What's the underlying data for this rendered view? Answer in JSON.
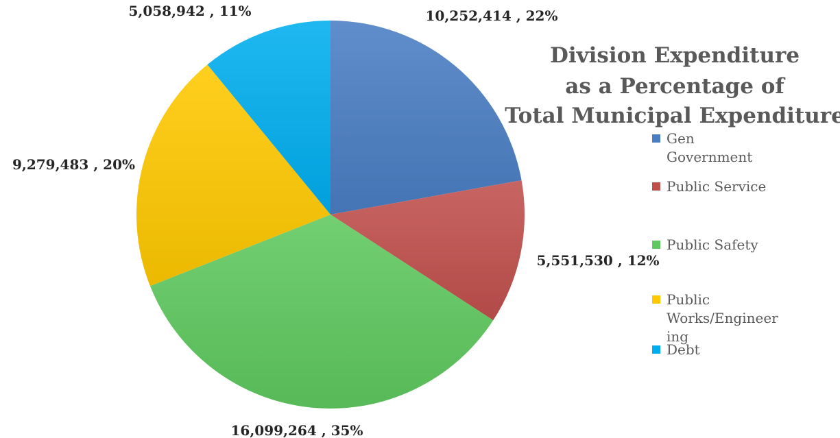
{
  "chart_data": {
    "type": "pie",
    "title_lines": [
      "Division Expenditure",
      "as a Percentage of",
      "Total Municipal Expenditure"
    ],
    "categories": [
      "Gen Government",
      "Public Service",
      "Public Safety",
      "Public Works/Engineering",
      "Debt"
    ],
    "legend_lines": [
      [
        "Gen",
        "Government"
      ],
      [
        "Public Service"
      ],
      [
        "Public Safety"
      ],
      [
        "Public",
        "Works/Engineer",
        "ing"
      ],
      [
        "Debt"
      ]
    ],
    "values": [
      10252414,
      5551530,
      16099264,
      9279483,
      5058942
    ],
    "percentages": [
      "22%",
      "12%",
      "35%",
      "20%",
      "11%"
    ],
    "data_labels": [
      "10,252,414 , 22%",
      "5,551,530 , 12%",
      "16,099,264 , 35%",
      "9,279,483 , 20%",
      "5,058,942 , 11%"
    ],
    "colors": [
      "#4A7EC4",
      "#C0504D",
      "#5FC95F",
      "#FFC900",
      "#00AEEF"
    ],
    "legend_position": "right"
  }
}
